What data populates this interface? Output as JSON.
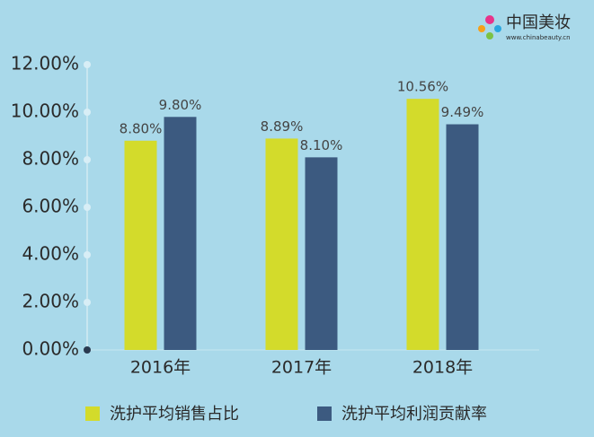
{
  "logo": {
    "name": "中国美妆",
    "url": "www.chinabeauty.cn"
  },
  "chart_data": {
    "type": "bar",
    "categories": [
      "2016年",
      "2017年",
      "2018年"
    ],
    "series": [
      {
        "name": "洗护平均销售占比",
        "color": "#d3db2b",
        "values": [
          8.8,
          8.89,
          10.56
        ],
        "value_labels": [
          "8.80%",
          "8.89%",
          "10.56%"
        ]
      },
      {
        "name": "洗护平均利润贡献率",
        "color": "#3c5a80",
        "values": [
          9.8,
          8.1,
          9.49
        ],
        "value_labels": [
          "9.80%",
          "8.10%",
          "9.49%"
        ]
      }
    ],
    "ylim": [
      0,
      12
    ],
    "yticks": [
      {
        "value": 0,
        "label": "0.00%"
      },
      {
        "value": 2,
        "label": "2.00%"
      },
      {
        "value": 4,
        "label": "4.00%"
      },
      {
        "value": 6,
        "label": "6.00%"
      },
      {
        "value": 8,
        "label": "8.00%"
      },
      {
        "value": 10,
        "label": "10.00%"
      },
      {
        "value": 12,
        "label": "12.00%"
      }
    ],
    "legend": "bottom"
  }
}
